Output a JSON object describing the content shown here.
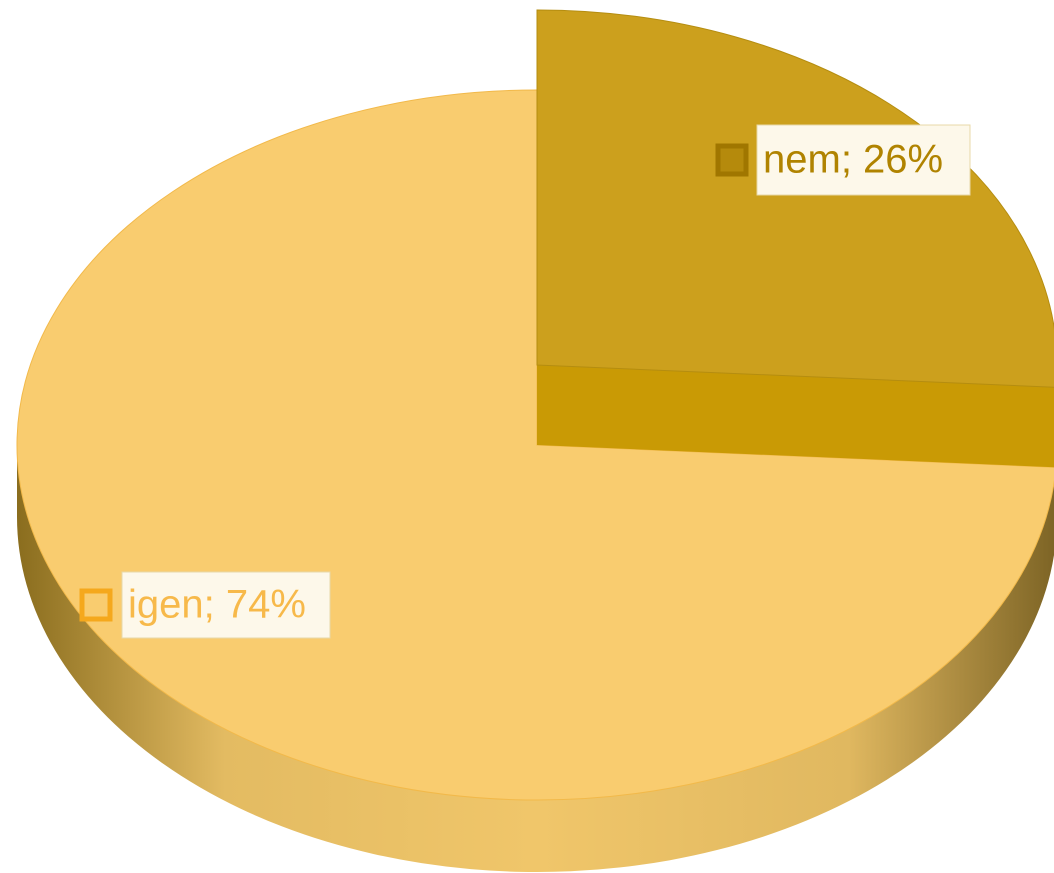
{
  "chart_data": {
    "type": "pie",
    "values": [
      26,
      74
    ],
    "value_labels": [
      "nem; 26%",
      "igen; 74%"
    ],
    "colors": [
      "#cca01d",
      "#f9cc6f"
    ]
  }
}
